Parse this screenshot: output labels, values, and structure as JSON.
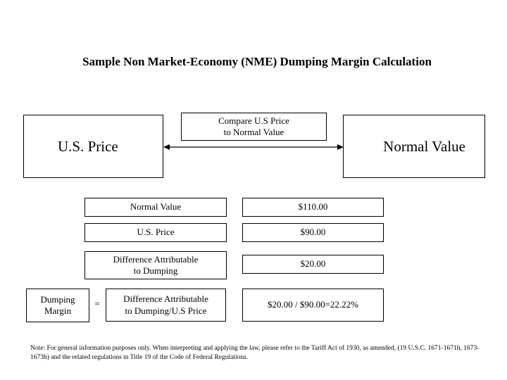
{
  "title": "Sample Non Market-Economy (NME) Dumping Margin Calculation",
  "us_price_box": "U.S. Price",
  "normal_value_box": "Normal Value",
  "compare_box": {
    "line1": "Compare U.S Price",
    "line2": "to Normal Value"
  },
  "rows": [
    {
      "label": "Normal Value",
      "value": "$110.00"
    },
    {
      "label": "U.S. Price",
      "value": "$90.00"
    },
    {
      "label_line1": "Difference Attributable",
      "label_line2": "to Dumping",
      "value": "$20.00"
    }
  ],
  "dumping_margin": {
    "label_line1": "Dumping",
    "label_line2": "Margin",
    "equals": "=",
    "formula_line1": "Difference Attributable",
    "formula_line2": "to Dumping/U.S Price",
    "result": "$20.00 / $90.00=22.22%"
  },
  "note": "Note: For general information purposes only. When interpreting and applying the law, please refer to the Tariff Act of 1930, as amended, (19 U.S.C. 1671-1671h, 1673-1673h) and the related regulations in Title 19 of the Code of Federal Regulations."
}
